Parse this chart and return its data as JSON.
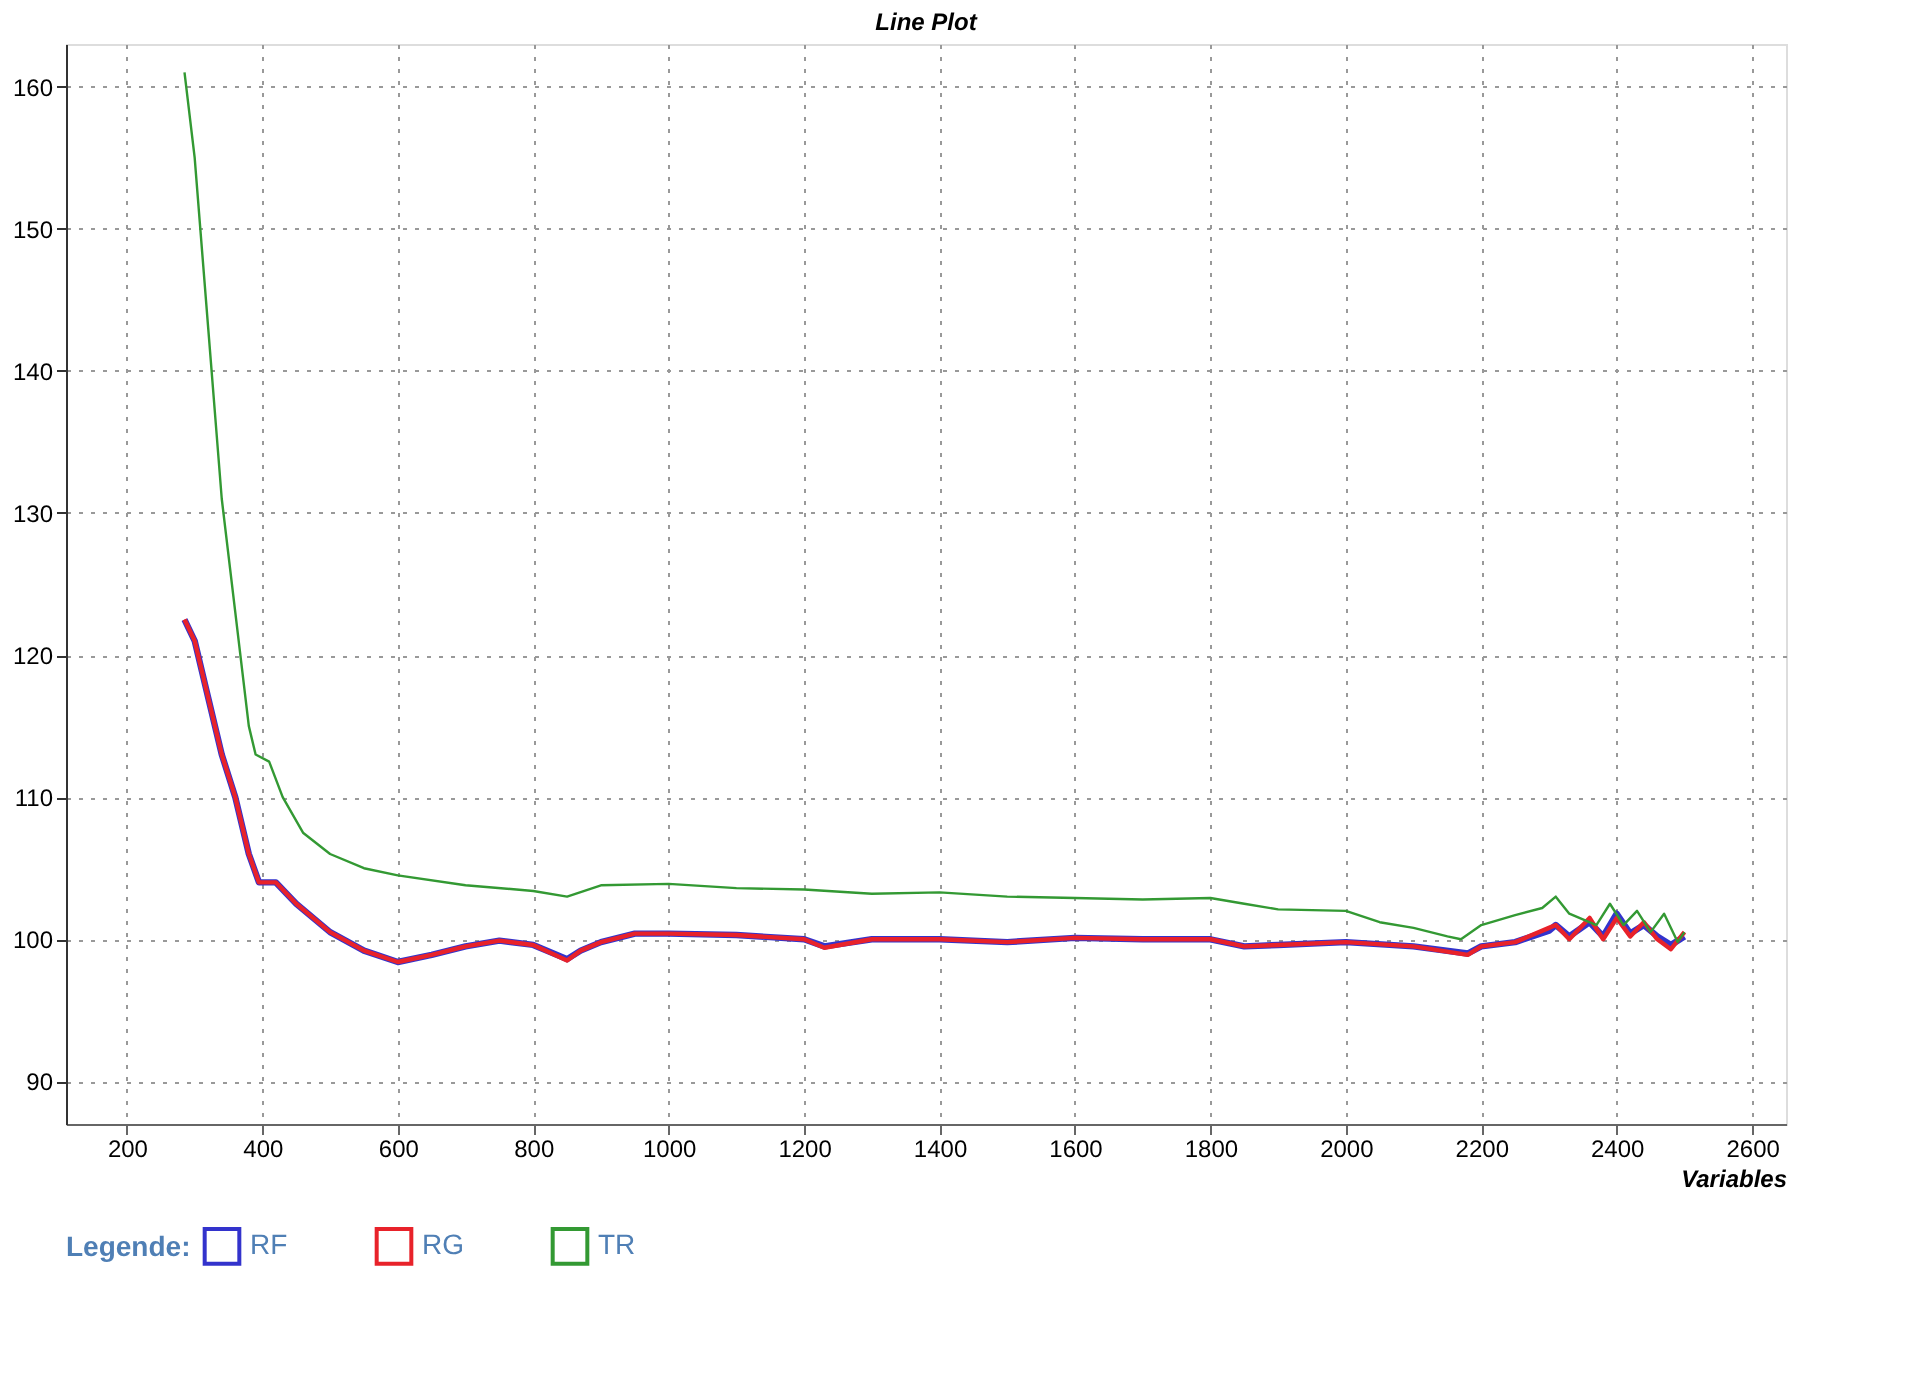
{
  "chart_data": {
    "type": "line",
    "title": "Line Plot",
    "xlabel": "Variables",
    "legend_title": "Legende:",
    "legend": "bottom",
    "grid": true,
    "line_style": "solid",
    "marker": "none",
    "xlim": [
      110,
      2650
    ],
    "ylim": [
      87,
      163
    ],
    "xticks": [
      200,
      400,
      600,
      800,
      1000,
      1200,
      1400,
      1600,
      1800,
      2000,
      2200,
      2400,
      2600
    ],
    "yticks": [
      90,
      100,
      110,
      120,
      130,
      140,
      150,
      160
    ],
    "series": [
      {
        "name": "RF",
        "color": "#3333cc",
        "x": [
          285,
          300,
          320,
          340,
          360,
          380,
          395,
          420,
          450,
          500,
          550,
          600,
          650,
          700,
          750,
          800,
          850,
          870,
          900,
          950,
          1000,
          1100,
          1200,
          1230,
          1300,
          1400,
          1500,
          1600,
          1700,
          1800,
          1850,
          1900,
          2000,
          2100,
          2180,
          2200,
          2250,
          2300,
          2310,
          2330,
          2360,
          2380,
          2400,
          2420,
          2440,
          2460,
          2480,
          2500
        ],
        "values": [
          122.5,
          121,
          117,
          113,
          110,
          106,
          104,
          104,
          102.5,
          100.5,
          99.2,
          98.4,
          98.9,
          99.5,
          99.9,
          99.6,
          98.6,
          99.2,
          99.8,
          100.4,
          100.4,
          100.3,
          100,
          99.5,
          100,
          100,
          99.8,
          100.1,
          100,
          100,
          99.5,
          99.6,
          99.8,
          99.5,
          99,
          99.5,
          99.8,
          100.6,
          101,
          100.2,
          101.2,
          100.2,
          101.8,
          100.4,
          101,
          100.2,
          99.6,
          100.2
        ]
      },
      {
        "name": "RG",
        "color": "#e8222a",
        "x": [
          285,
          300,
          320,
          340,
          360,
          380,
          395,
          420,
          450,
          500,
          550,
          600,
          650,
          700,
          750,
          800,
          850,
          870,
          900,
          950,
          1000,
          1100,
          1200,
          1230,
          1300,
          1400,
          1500,
          1600,
          1700,
          1800,
          1850,
          1900,
          2000,
          2100,
          2180,
          2200,
          2250,
          2300,
          2310,
          2330,
          2360,
          2380,
          2400,
          2420,
          2440,
          2460,
          2480,
          2500
        ],
        "values": [
          122.5,
          121,
          117,
          113,
          110,
          106,
          104,
          104,
          102.5,
          100.5,
          99.2,
          98.4,
          98.9,
          99.5,
          99.9,
          99.6,
          98.5,
          99.2,
          99.8,
          100.4,
          100.4,
          100.3,
          100,
          99.4,
          100,
          100,
          99.8,
          100.1,
          100,
          100,
          99.5,
          99.6,
          99.8,
          99.5,
          98.9,
          99.5,
          99.8,
          100.8,
          101,
          100,
          101.5,
          100,
          101.5,
          100.2,
          101.2,
          100,
          99.3,
          100.5
        ]
      },
      {
        "name": "TR",
        "color": "#339933",
        "x": [
          285,
          300,
          320,
          340,
          360,
          380,
          390,
          410,
          430,
          460,
          500,
          550,
          600,
          700,
          800,
          850,
          900,
          1000,
          1100,
          1200,
          1300,
          1400,
          1500,
          1600,
          1700,
          1800,
          1850,
          1900,
          2000,
          2050,
          2100,
          2150,
          2170,
          2200,
          2250,
          2290,
          2310,
          2330,
          2370,
          2390,
          2410,
          2430,
          2450,
          2470,
          2490,
          2500
        ],
        "values": [
          161,
          155,
          143,
          131,
          123,
          115,
          113,
          112.5,
          110,
          107.5,
          106,
          105,
          104.5,
          103.8,
          103.4,
          103,
          103.8,
          103.9,
          103.6,
          103.5,
          103.2,
          103.3,
          103,
          102.9,
          102.8,
          102.9,
          102.5,
          102.1,
          102,
          101.2,
          100.8,
          100.2,
          100,
          101,
          101.7,
          102.2,
          103,
          101.8,
          101,
          102.5,
          101,
          102,
          100.5,
          101.8,
          99.8,
          100.5
        ]
      }
    ]
  }
}
